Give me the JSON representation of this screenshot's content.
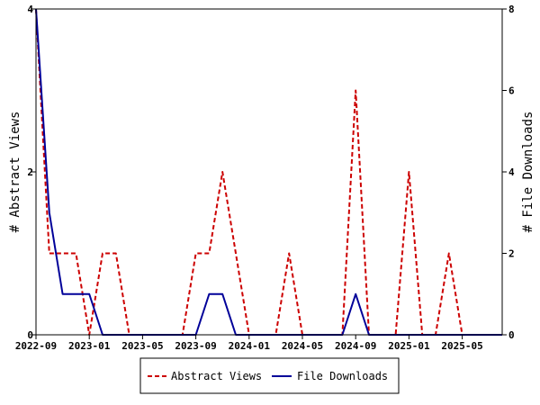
{
  "chart_data": {
    "type": "line",
    "x": [
      "2022-09",
      "2022-10",
      "2022-11",
      "2022-12",
      "2023-01",
      "2023-02",
      "2023-03",
      "2023-04",
      "2023-05",
      "2023-06",
      "2023-07",
      "2023-08",
      "2023-09",
      "2023-10",
      "2023-11",
      "2023-12",
      "2024-01",
      "2024-02",
      "2024-03",
      "2024-04",
      "2024-05",
      "2024-06",
      "2024-07",
      "2024-08",
      "2024-09",
      "2024-10",
      "2024-11",
      "2024-12",
      "2025-01",
      "2025-02",
      "2025-03",
      "2025-04",
      "2025-05",
      "2025-06",
      "2025-07",
      "2025-08"
    ],
    "x_tick_labels": [
      "2022-09",
      "2023-01",
      "2023-05",
      "2023-09",
      "2024-01",
      "2024-05",
      "2024-09",
      "2025-01",
      "2025-05"
    ],
    "series": [
      {
        "name": "Abstract Views",
        "axis": "left",
        "color": "#cc0000",
        "style": "dashed",
        "values": [
          4,
          1,
          1,
          1,
          0,
          1,
          1,
          0,
          0,
          0,
          0,
          0,
          1,
          1,
          2,
          1,
          0,
          0,
          0,
          1,
          0,
          0,
          0,
          0,
          3,
          0,
          0,
          0,
          2,
          0,
          0,
          1,
          0,
          0,
          0,
          0
        ]
      },
      {
        "name": "File Downloads",
        "axis": "right",
        "color": "#000099",
        "style": "solid",
        "values": [
          8,
          3,
          1,
          1,
          1,
          0,
          0,
          0,
          0,
          0,
          0,
          0,
          0,
          1,
          1,
          0,
          0,
          0,
          0,
          0,
          0,
          0,
          0,
          0,
          1,
          0,
          0,
          0,
          0,
          0,
          0,
          0,
          0,
          0,
          0,
          0
        ]
      }
    ],
    "ylabel_left": "# Abstract Views",
    "ylabel_right": "# File Downloads",
    "ylim_left": [
      0,
      4
    ],
    "ylim_right": [
      0,
      8
    ],
    "yticks_left": [
      0,
      2,
      4
    ],
    "yticks_right": [
      0,
      2,
      4,
      6,
      8
    ],
    "grid": false,
    "legend_position": "bottom-center"
  }
}
